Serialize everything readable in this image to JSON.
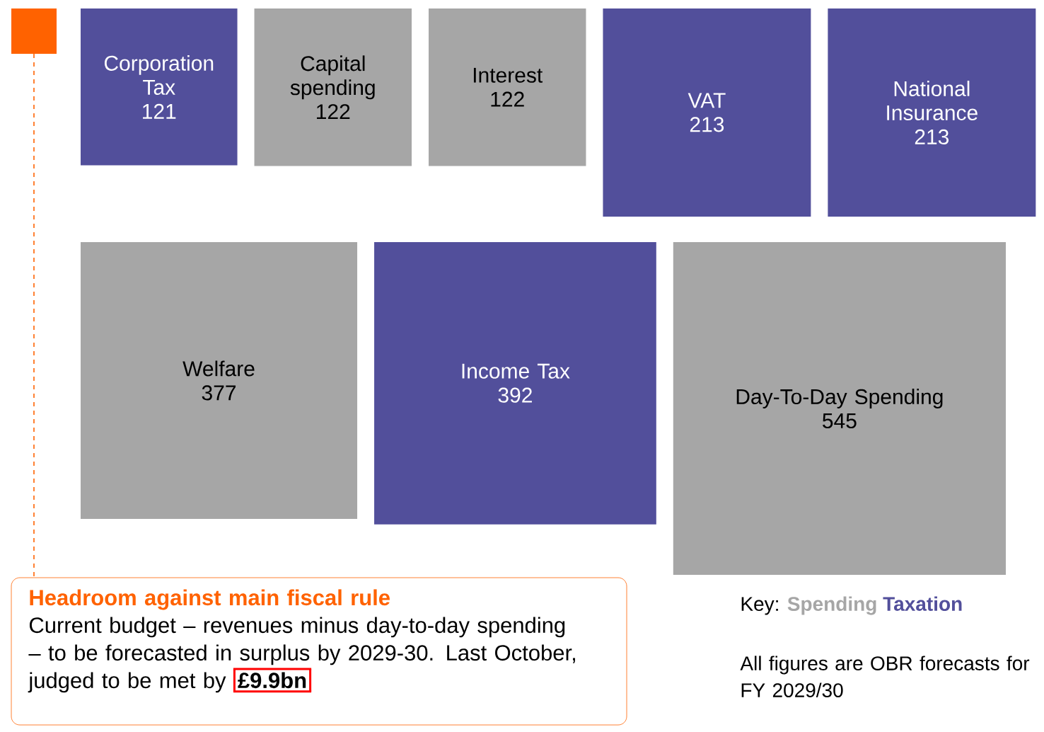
{
  "chart_data": {
    "type": "other",
    "categories": [
      "Corporation Tax",
      "Capital spending",
      "Interest",
      "VAT",
      "National Insurance",
      "Welfare",
      "Income Tax",
      "Day-To-Day Spending"
    ],
    "series": [
      {
        "name": "Spending",
        "color": "#a6a6a6",
        "values": [
          null,
          122,
          122,
          null,
          null,
          377,
          null,
          545
        ],
        "value_labels": [
          null,
          "122",
          "122",
          null,
          null,
          "377",
          null,
          "545"
        ]
      },
      {
        "name": "Taxation",
        "color": "#524f9b",
        "values": [
          121,
          null,
          null,
          213,
          213,
          null,
          392,
          null
        ],
        "value_labels": [
          "121",
          null,
          null,
          "213",
          "213",
          null,
          "392",
          null
        ]
      }
    ],
    "legend": "bottom right",
    "legend_title": "Key:",
    "annotations": [
      "Headroom against main fiscal rule",
      "Current budget – revenues minus day-to-day spending – to be forecasted in surplus by 2029-30. Last October, judged to be met by",
      "£9.9bn",
      "All figures are OBR forecasts for FY 2029/30"
    ]
  }
}
